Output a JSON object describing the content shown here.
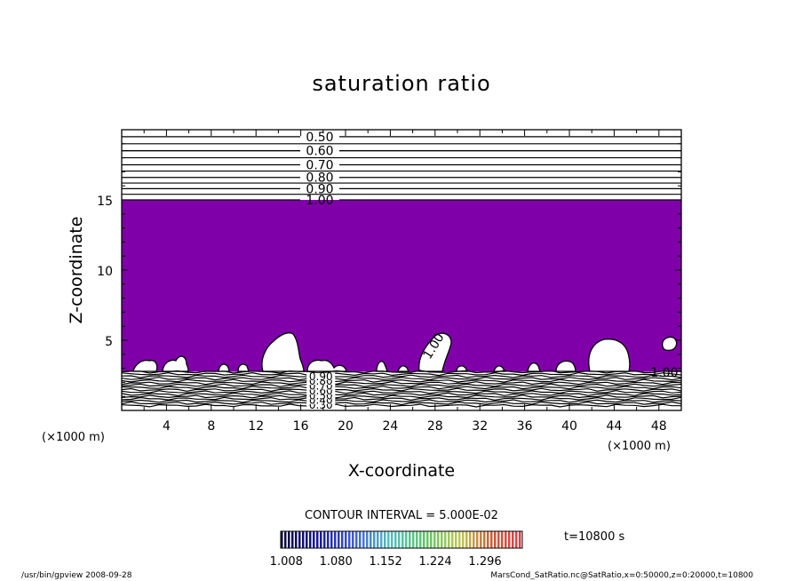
{
  "chart_data": {
    "type": "contour",
    "title": "saturation ratio",
    "xlabel": "X-coordinate",
    "ylabel": "Z-coordinate",
    "x_unit": "(×1000 m)",
    "y_unit": "(×1000 m)",
    "xlim": [
      0,
      50
    ],
    "ylim": [
      0,
      20
    ],
    "xticks": [
      "4",
      "8",
      "12",
      "16",
      "20",
      "24",
      "28",
      "32",
      "36",
      "40",
      "44",
      "48"
    ],
    "yticks": [
      "5",
      "10",
      "15"
    ],
    "shaded_level_boundary": 1.0,
    "shade_color": "#7f00a8",
    "upper_contour_labels": [
      "0.50",
      "0.60",
      "0.70",
      "0.80",
      "0.90",
      "1.00"
    ],
    "upper_contour_values": [
      0.5,
      0.6,
      0.7,
      0.8,
      0.9,
      1.0
    ],
    "upper_contour_z": [
      19.5,
      18.5,
      17.5,
      16.6,
      15.8,
      15.0
    ],
    "lower_contour_labels": [
      "0.30",
      "0.40",
      "0.50",
      "0.60",
      "0.70",
      "0.80",
      "0.90"
    ],
    "other_contour_labels": [
      "1.00",
      "1.00"
    ],
    "contour_interval": "CONTOUR INTERVAL = 5.000E-02",
    "colorbar_ticks": [
      "1.008",
      "1.080",
      "1.152",
      "1.224",
      "1.296"
    ],
    "time_label": "t=10800 s"
  },
  "footer": {
    "left": "/usr/bin/gpview   2008-09-28",
    "right": "MarsCond_SatRatio.nc@SatRatio,x=0:50000,z=0:20000,t=10800"
  }
}
